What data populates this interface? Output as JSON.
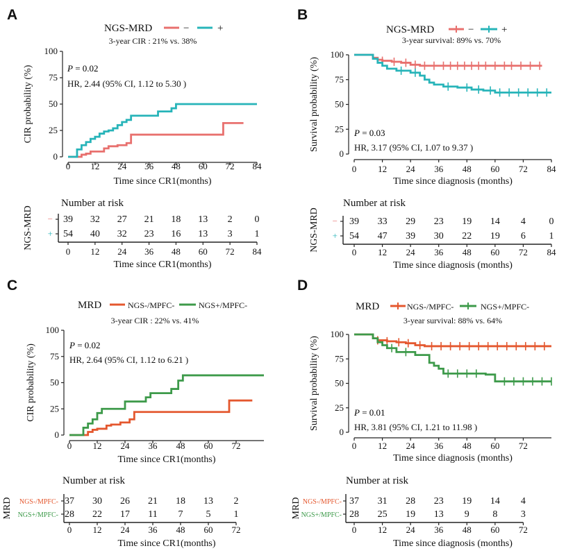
{
  "colors": {
    "red": "#e8706e",
    "teal": "#27b4b9",
    "orange": "#e4572e",
    "green": "#3d9a4a",
    "axis": "#222222"
  },
  "chart_data": [
    {
      "panel_label": "A",
      "type": "line",
      "subtype": "cumulative-incidence step curve",
      "legend_title": "NGS-MRD",
      "legend_entries": [
        "−",
        "+"
      ],
      "subtitle": "3-year CIR :  21% vs. 38%",
      "ylabel": "CIR  probability (%)",
      "xlabel": "Time since CR1(months)",
      "ylim": [
        0,
        100
      ],
      "xlim": [
        0,
        84
      ],
      "yticks": [
        "0",
        "25",
        "50",
        "75",
        "100"
      ],
      "xticks": [
        "0",
        "12",
        "24",
        "36",
        "48",
        "60",
        "72",
        "84"
      ],
      "p_prefix": "P",
      "p_value": "= 0.02",
      "hr_text": "HR,  2.44  (95% CI,  1.12  to  5.30 )",
      "series": [
        {
          "name": "−",
          "color": "#e8706e",
          "x": [
            0,
            4,
            6,
            8,
            10,
            14,
            16,
            18,
            22,
            26,
            28,
            67,
            69,
            78
          ],
          "y": [
            0,
            0,
            2,
            3,
            5,
            5,
            8,
            10,
            11,
            13,
            21,
            21,
            32,
            32
          ],
          "censored": []
        },
        {
          "name": "+",
          "color": "#27b4b9",
          "x": [
            0,
            3,
            4,
            6,
            8,
            10,
            12,
            14,
            16,
            18,
            20,
            22,
            24,
            26,
            28,
            40,
            46,
            48,
            84
          ],
          "y": [
            0,
            0,
            7,
            11,
            14,
            17,
            19,
            22,
            24,
            25,
            27,
            30,
            33,
            35,
            39,
            43,
            46,
            50,
            50
          ],
          "censored": []
        }
      ],
      "risk_table": {
        "title": "Number at risk",
        "ylabel": "NGS-MRD",
        "xlabel": "Time since CR1(months)",
        "xticks": [
          "0",
          "12",
          "24",
          "36",
          "48",
          "60",
          "72",
          "84"
        ],
        "rows": [
          {
            "label": "−",
            "color": "#e8706e",
            "values": [
              "39",
              "32",
              "27",
              "21",
              "18",
              "13",
              "2",
              "0"
            ]
          },
          {
            "label": "+",
            "color": "#27b4b9",
            "values": [
              "54",
              "40",
              "32",
              "23",
              "16",
              "13",
              "3",
              "1"
            ]
          }
        ]
      }
    },
    {
      "panel_label": "B",
      "type": "line",
      "subtype": "Kaplan-Meier survival step curve",
      "legend_title": "NGS-MRD",
      "legend_entries": [
        "−",
        "+"
      ],
      "subtitle": "3-year survival: 89% vs. 70%",
      "ylabel": "Survival  probability (%)",
      "xlabel": "Time since diagnosis (months)",
      "ylim": [
        0,
        100
      ],
      "xlim": [
        0,
        84
      ],
      "yticks": [
        "0",
        "25",
        "50",
        "75",
        "100"
      ],
      "xticks": [
        "0",
        "12",
        "24",
        "36",
        "48",
        "60",
        "72",
        "84"
      ],
      "p_prefix": "P",
      "p_value": "= 0.03",
      "hr_text": "HR,  3.17  (95% CI,  1.07  to  9.37 )",
      "series": [
        {
          "name": "−",
          "color": "#e8706e",
          "x": [
            0,
            8,
            10,
            12,
            16,
            20,
            24,
            28,
            80
          ],
          "y": [
            100,
            97,
            95,
            94,
            93,
            92,
            90,
            89,
            89
          ],
          "censored": [
            12,
            17,
            22,
            26,
            30,
            34,
            38,
            41,
            44,
            47,
            50,
            53,
            56,
            60,
            64,
            67,
            71,
            75,
            79
          ]
        },
        {
          "name": "+",
          "color": "#27b4b9",
          "x": [
            0,
            8,
            10,
            12,
            14,
            18,
            24,
            28,
            30,
            32,
            34,
            38,
            44,
            50,
            55,
            60,
            84
          ],
          "y": [
            100,
            96,
            92,
            89,
            86,
            84,
            82,
            79,
            75,
            72,
            70,
            68,
            67,
            65,
            64,
            62,
            62
          ],
          "censored": [
            20,
            26,
            40,
            48,
            53,
            58,
            62,
            66,
            70,
            74,
            78,
            82
          ]
        }
      ],
      "risk_table": {
        "title": "Number at risk",
        "ylabel": "NGS-MRD",
        "xlabel": "Time since diagnosis (months)",
        "xticks": [
          "0",
          "12",
          "24",
          "36",
          "48",
          "60",
          "72",
          "84"
        ],
        "rows": [
          {
            "label": "−",
            "color": "#e8706e",
            "values": [
              "39",
              "33",
              "29",
              "23",
              "19",
              "14",
              "4",
              "0"
            ]
          },
          {
            "label": "+",
            "color": "#27b4b9",
            "values": [
              "54",
              "47",
              "39",
              "30",
              "22",
              "19",
              "6",
              "1"
            ]
          }
        ]
      }
    },
    {
      "panel_label": "C",
      "type": "line",
      "subtype": "cumulative-incidence step curve",
      "legend_title": "MRD",
      "legend_entries": [
        "NGS-/MPFC-",
        "NGS+/MPFC-"
      ],
      "subtitle": "3-year CIR :  22% vs. 41%",
      "ylabel": "CIR  probability (%)",
      "xlabel": "Time since CR1(months)",
      "ylim": [
        0,
        100
      ],
      "xlim": [
        0,
        84
      ],
      "yticks": [
        "0",
        "25",
        "50",
        "75",
        "100"
      ],
      "xticks": [
        "0",
        "12",
        "24",
        "36",
        "48",
        "60",
        "72"
      ],
      "p_prefix": "P",
      "p_value": "= 0.02",
      "hr_text": "HR,  2.64  (95% CI,  1.12  to  6.21 )",
      "series": [
        {
          "name": "NGS-/MPFC-",
          "color": "#e4572e",
          "x": [
            0,
            4,
            8,
            10,
            12,
            16,
            18,
            22,
            26,
            28,
            67,
            69,
            79
          ],
          "y": [
            0,
            0,
            3,
            5,
            6,
            9,
            10,
            12,
            15,
            22,
            22,
            33,
            33
          ],
          "censored": []
        },
        {
          "name": "NGS+/MPFC-",
          "color": "#3d9a4a",
          "x": [
            0,
            4,
            6,
            8,
            10,
            12,
            14,
            24,
            33,
            35,
            44,
            47,
            49,
            84
          ],
          "y": [
            0,
            0,
            7,
            11,
            15,
            21,
            25,
            32,
            36,
            40,
            44,
            52,
            57,
            57
          ],
          "censored": []
        }
      ],
      "risk_table": {
        "title": "Number at risk",
        "ylabel": "MRD",
        "xlabel": "Time since CR1(months)",
        "xticks": [
          "0",
          "12",
          "24",
          "36",
          "48",
          "60",
          "72"
        ],
        "rows": [
          {
            "label": "NGS-/MPFC-",
            "color": "#e4572e",
            "values": [
              "37",
              "30",
              "26",
              "21",
              "18",
              "13",
              "2"
            ]
          },
          {
            "label": "NGS+/MPFC-",
            "color": "#3d9a4a",
            "values": [
              "28",
              "22",
              "17",
              "11",
              "7",
              "5",
              "1"
            ]
          }
        ]
      }
    },
    {
      "panel_label": "D",
      "type": "line",
      "subtype": "Kaplan-Meier survival step curve",
      "legend_title": "MRD",
      "legend_entries": [
        "NGS-/MPFC-",
        "NGS+/MPFC-"
      ],
      "subtitle": "3-year survival: 88% vs. 64%",
      "ylabel": "Survival  probability (%)",
      "xlabel": "Time since diagnosis (months)",
      "ylim": [
        0,
        100
      ],
      "xlim": [
        0,
        84
      ],
      "yticks": [
        "0",
        "25",
        "50",
        "75",
        "100"
      ],
      "xticks": [
        "0",
        "12",
        "24",
        "36",
        "48",
        "60",
        "72"
      ],
      "p_prefix": "P",
      "p_value": "= 0.01",
      "hr_text": "HR,  3.81  (95% CI,  1.21  to  11.98 )",
      "series": [
        {
          "name": "NGS-/MPFC-",
          "color": "#e4572e",
          "x": [
            0,
            8,
            10,
            14,
            18,
            22,
            26,
            30,
            84
          ],
          "y": [
            100,
            96,
            94,
            93,
            92,
            91,
            89,
            88,
            88
          ],
          "censored": [
            10,
            14,
            19,
            23,
            28,
            33,
            37,
            41,
            45,
            49,
            53,
            57,
            61,
            65,
            69,
            73,
            77,
            81
          ]
        },
        {
          "name": "NGS+/MPFC-",
          "color": "#3d9a4a",
          "x": [
            0,
            8,
            10,
            12,
            14,
            18,
            26,
            32,
            34,
            36,
            38,
            54,
            56,
            60,
            84
          ],
          "y": [
            100,
            96,
            92,
            89,
            86,
            82,
            79,
            71,
            68,
            65,
            60,
            60,
            59,
            52,
            52
          ],
          "censored": [
            16,
            22,
            40,
            44,
            48,
            52,
            64,
            68,
            72,
            76,
            80,
            84
          ]
        }
      ],
      "risk_table": {
        "title": "Number at risk",
        "ylabel": "MRD",
        "xlabel": "Time since diagnosis (months)",
        "xticks": [
          "0",
          "12",
          "24",
          "36",
          "48",
          "60",
          "72"
        ],
        "rows": [
          {
            "label": "NGS-/MPFC-",
            "color": "#e4572e",
            "values": [
              "37",
              "31",
              "28",
              "23",
              "19",
              "14",
              "4"
            ]
          },
          {
            "label": "NGS+/MPFC-",
            "color": "#3d9a4a",
            "values": [
              "28",
              "25",
              "19",
              "13",
              "9",
              "8",
              "3"
            ]
          }
        ]
      }
    }
  ]
}
